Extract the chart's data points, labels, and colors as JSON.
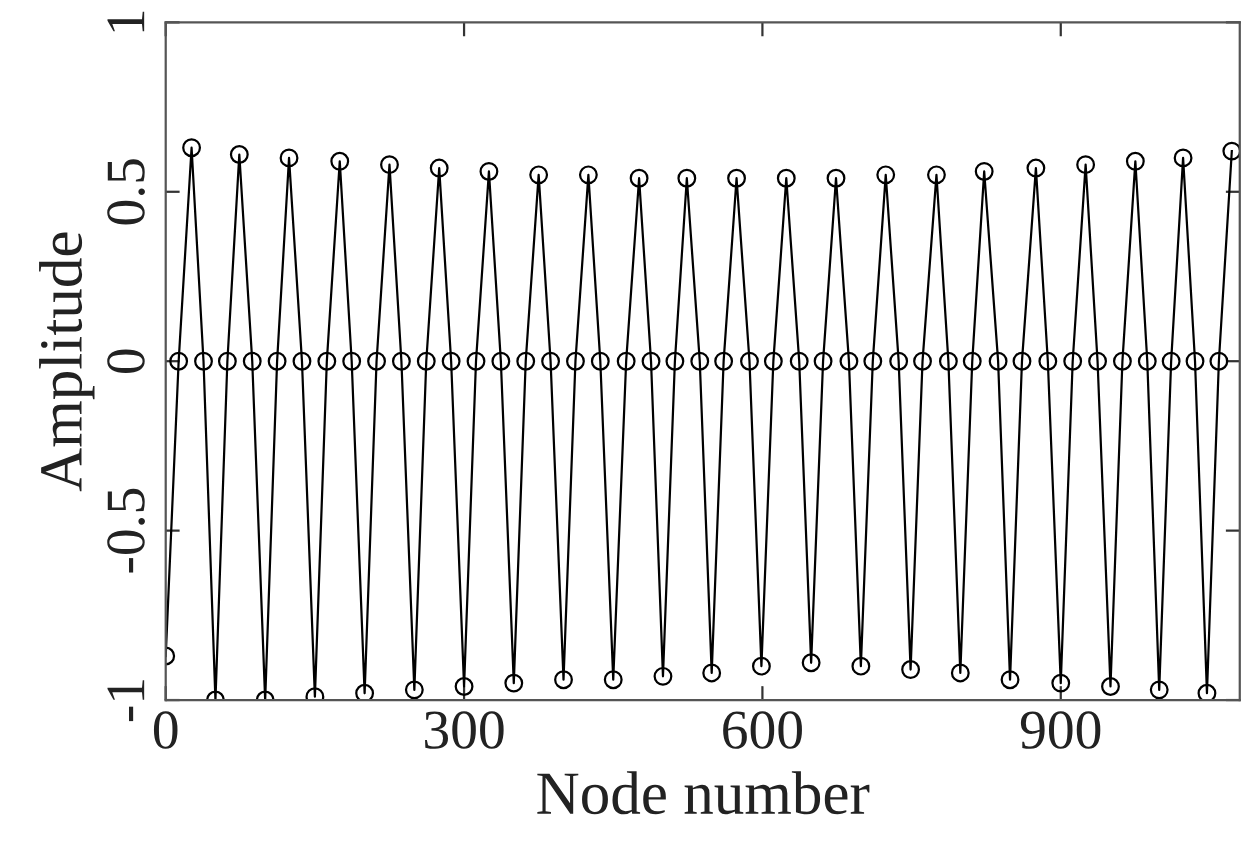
{
  "chart_data": {
    "type": "line",
    "xlabel": "Node number",
    "ylabel": "Amplitude",
    "x": [
      0,
      13,
      26,
      38,
      50,
      62,
      74,
      87,
      100,
      112,
      124,
      137,
      150,
      162,
      175,
      187,
      200,
      212,
      225,
      237,
      250,
      262,
      275,
      287,
      300,
      312,
      325,
      337,
      350,
      362,
      375,
      387,
      400,
      412,
      425,
      437,
      450,
      463,
      476,
      488,
      500,
      512,
      524,
      537,
      549,
      561,
      574,
      587,
      599,
      611,
      624,
      637,
      649,
      661,
      674,
      687,
      699,
      711,
      724,
      737,
      749,
      761,
      775,
      787,
      799,
      811,
      823,
      837,
      849,
      861,
      875,
      887,
      900,
      912,
      925,
      937,
      950,
      962,
      975,
      987,
      999,
      1011,
      1023,
      1035,
      1047,
      1059,
      1072
    ],
    "series": [
      {
        "color": "#000000",
        "values": [
          -0.87,
          0,
          0.63,
          0,
          -1.0,
          0,
          0.61,
          0,
          -1.0,
          0,
          0.6,
          0,
          -0.99,
          0,
          0.59,
          0,
          -0.98,
          0,
          0.58,
          0,
          -0.97,
          0,
          0.57,
          0,
          -0.96,
          0,
          0.56,
          0,
          -0.95,
          0,
          0.55,
          0,
          -0.94,
          0,
          0.55,
          0,
          -0.94,
          0,
          0.54,
          0,
          -0.93,
          0,
          0.54,
          0,
          -0.92,
          0,
          0.54,
          0,
          -0.9,
          0,
          0.54,
          0,
          -0.89,
          0,
          0.54,
          0,
          -0.9,
          0,
          0.55,
          0,
          -0.91,
          0,
          0.55,
          0,
          -0.92,
          0,
          0.56,
          0,
          -0.94,
          0,
          0.57,
          0,
          -0.95,
          0,
          0.58,
          0,
          -0.96,
          0,
          0.59,
          0,
          -0.97,
          0,
          0.6,
          0,
          -0.98,
          0,
          0.62
        ]
      }
    ],
    "xlim": [
      0,
      1080
    ],
    "xticks": [
      0,
      300,
      600,
      900
    ],
    "ylim": [
      -1,
      1
    ],
    "yticks": [
      -1,
      -0.5,
      0,
      0.5,
      1
    ],
    "marker": "circle",
    "line_style": "solid",
    "grid": false,
    "legend": false
  }
}
